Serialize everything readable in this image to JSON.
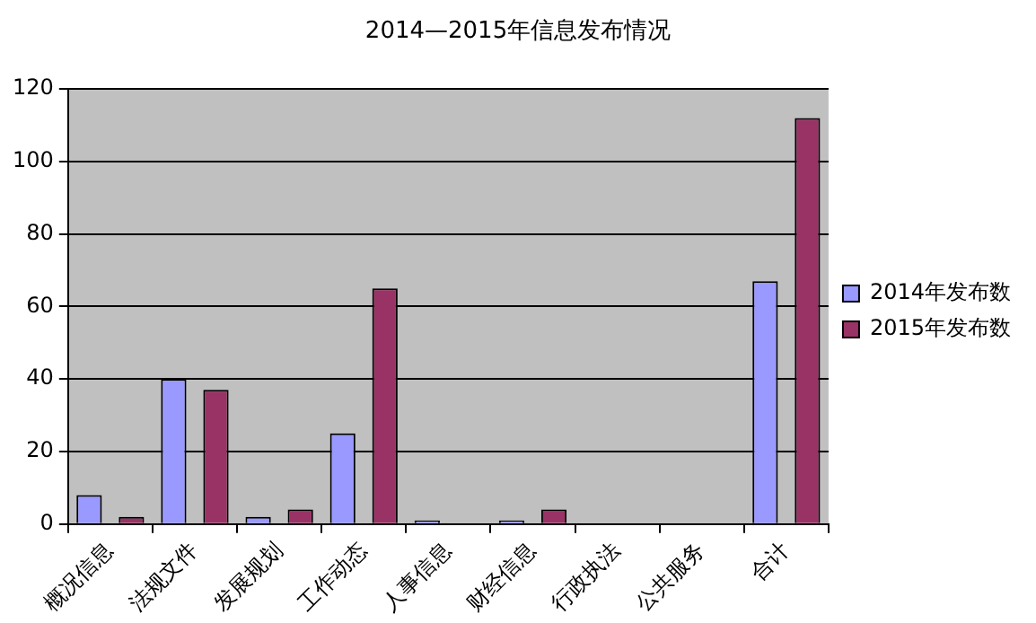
{
  "chart_data": {
    "type": "bar",
    "title": "2014—2015年信息发布情况",
    "categories": [
      "概况信息",
      "法规文件",
      "发展规划",
      "工作动态",
      "人事信息",
      "财经信息",
      "行政执法",
      "公共服务",
      "合计"
    ],
    "series": [
      {
        "name": "2014年发布数",
        "color": "#9999ff",
        "values": [
          8,
          40,
          2,
          25,
          1,
          1,
          0,
          0,
          67
        ]
      },
      {
        "name": "2015年发布数",
        "color": "#993366",
        "values": [
          2,
          37,
          4,
          65,
          0,
          4,
          0,
          0,
          112
        ]
      }
    ],
    "ylim": [
      0,
      120
    ],
    "yticks": [
      0,
      20,
      40,
      60,
      80,
      100,
      120
    ],
    "grid": "y",
    "legend": "right"
  }
}
